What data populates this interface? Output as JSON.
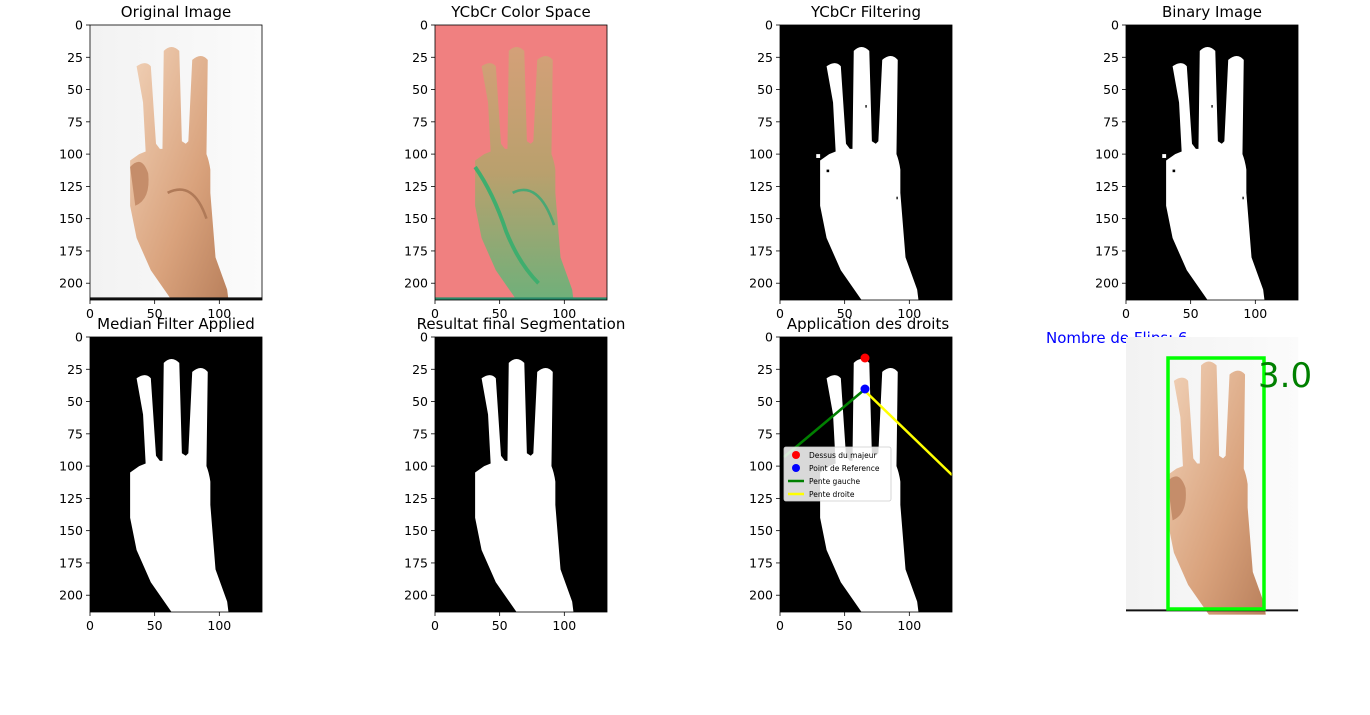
{
  "panels": [
    {
      "title": "Original Image",
      "type": "photo"
    },
    {
      "title": "YCbCr Color Space",
      "type": "ycbcr"
    },
    {
      "title": "YCbCr Filtering",
      "type": "noisy-mask"
    },
    {
      "title": "Binary Image",
      "type": "noisy-mask"
    },
    {
      "title": "Median Filter Applied",
      "type": "mask"
    },
    {
      "title": "Resultat final Segmentation",
      "type": "mask"
    },
    {
      "title": "Application des droits",
      "type": "lines"
    },
    {
      "title": "",
      "type": "detection"
    }
  ],
  "axes": {
    "y_ticks": [
      "0",
      "25",
      "50",
      "75",
      "100",
      "125",
      "150",
      "175",
      "200"
    ],
    "x_ticks": [
      "0",
      "50",
      "100"
    ]
  },
  "legend": {
    "items": [
      {
        "label": "Dessus du majeur",
        "color": "#ff0000",
        "marker": "dot"
      },
      {
        "label": "Point de Reference",
        "color": "#0000ff",
        "marker": "dot"
      },
      {
        "label": "Pente gauche",
        "color": "#008000",
        "marker": "line"
      },
      {
        "label": "Pente droite",
        "color": "#ffff00",
        "marker": "line"
      }
    ]
  },
  "detection": {
    "flips_label": "Nombre de  Flips: 6",
    "count_label": "3.0",
    "box_color": "#00ff00"
  },
  "colors": {
    "skin": "#e8bfa0",
    "ycbcr_bg": "#f08080",
    "ycbcr_hand": "#c8a07a",
    "mask_bg": "#000000",
    "mask_fg": "#ffffff"
  }
}
